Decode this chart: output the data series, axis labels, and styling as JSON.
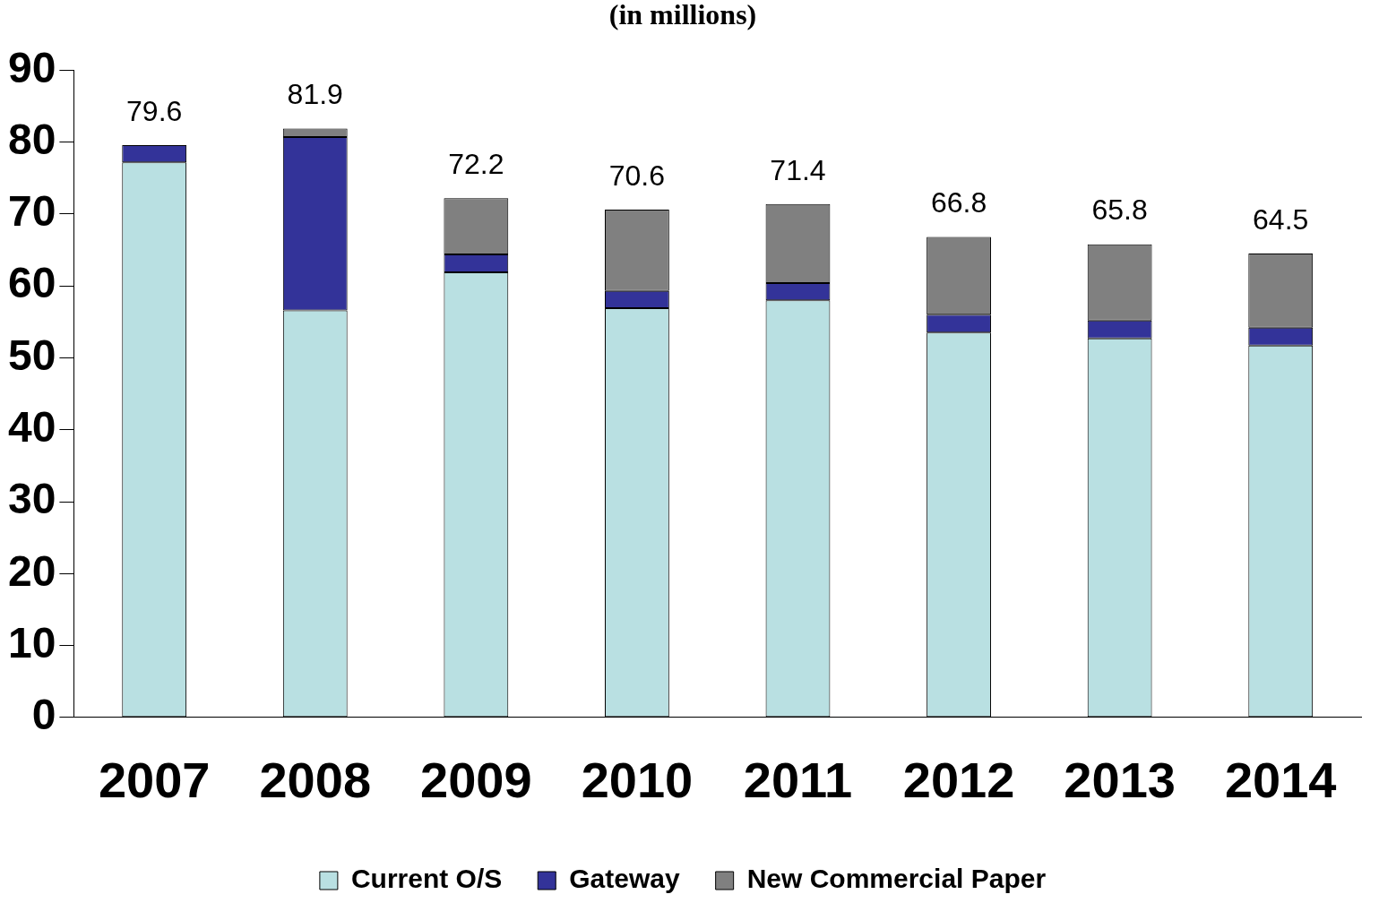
{
  "chart_data": {
    "type": "bar",
    "title": "(in millions)",
    "stacked": true,
    "categories": [
      "2007",
      "2008",
      "2009",
      "2010",
      "2011",
      "2012",
      "2013",
      "2014"
    ],
    "series": [
      {
        "name": "Current O/S",
        "color": "#b9e0e2",
        "values": [
          77.2,
          56.6,
          61.9,
          56.9,
          58.0,
          53.5,
          52.7,
          51.7
        ]
      },
      {
        "name": "Gateway",
        "color": "#333399",
        "values": [
          2.4,
          24.1,
          2.5,
          2.4,
          2.4,
          2.5,
          2.5,
          2.5
        ]
      },
      {
        "name": "New Commercial Paper",
        "color": "#808080",
        "values": [
          0,
          1.2,
          7.8,
          11.3,
          11.0,
          10.8,
          10.6,
          10.3
        ]
      }
    ],
    "totals": [
      "79.6",
      "81.9",
      "72.2",
      "70.6",
      "71.4",
      "66.8",
      "65.8",
      "64.5"
    ],
    "ylim": [
      0,
      90
    ],
    "yticks": [
      0,
      10,
      20,
      30,
      40,
      50,
      60,
      70,
      80,
      90
    ],
    "grid": false,
    "legend": "bottom"
  }
}
